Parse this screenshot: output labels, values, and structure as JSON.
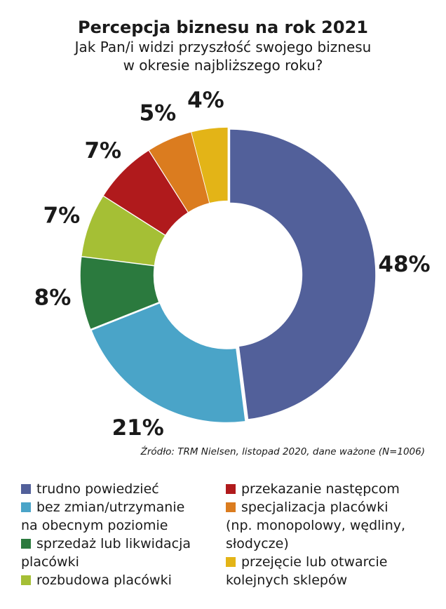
{
  "header": {
    "title": "Percepcja biznesu na rok 2021",
    "subtitle_line1": "Jak Pan/i widzi przyszłość swojego biznesu",
    "subtitle_line2": "w okresie najbliższego roku?"
  },
  "source": "Źródło: TRM Nielsen, listopad 2020, dane ważone (N=1006)",
  "chart_data": {
    "type": "pie",
    "donut": true,
    "unit": "%",
    "title": "Percepcja biznesu na rok 2021",
    "categories": [
      "trudno powiedzieć",
      "bez zmian/utrzymanie na obecnym poziomie",
      "sprzedaż lub likwidacja placówki",
      "rozbudowa placówki",
      "przekazanie następcom",
      "specjalizacja placówki (np. monopolowy, wędliny, słodycze)",
      "przejęcie lub otwarcie kolejnych sklepów"
    ],
    "values": [
      48,
      21,
      8,
      7,
      7,
      5,
      4
    ],
    "labels": [
      "48%",
      "21%",
      "8%",
      "7%",
      "7%",
      "5%",
      "4%"
    ],
    "colors": [
      "#52609a",
      "#4aa4c8",
      "#2b7a3e",
      "#a5bf35",
      "#b01a1c",
      "#db7c1f",
      "#e3b417"
    ],
    "legend_position": "bottom"
  },
  "legend": {
    "left": [
      {
        "line1": "trudno powiedzieć",
        "line2": "",
        "color": "#52609a"
      },
      {
        "line1": "bez zmian/utrzymanie",
        "line2": "na obecnym poziomie",
        "color": "#4aa4c8"
      },
      {
        "line1": "sprzedaż lub likwidacja",
        "line2": "placówki",
        "color": "#2b7a3e"
      },
      {
        "line1": "rozbudowa placówki",
        "line2": "",
        "color": "#a5bf35"
      }
    ],
    "right": [
      {
        "line1": "przekazanie następcom",
        "line2": "",
        "color": "#b01a1c"
      },
      {
        "line1": "specjalizacja placówki",
        "line2": "(np. monopolowy, wędliny,",
        "line3": "słodycze)",
        "color": "#db7c1f"
      },
      {
        "line1": "przejęcie lub otwarcie",
        "line2": "kolejnych sklepów",
        "color": "#e3b417"
      }
    ]
  }
}
